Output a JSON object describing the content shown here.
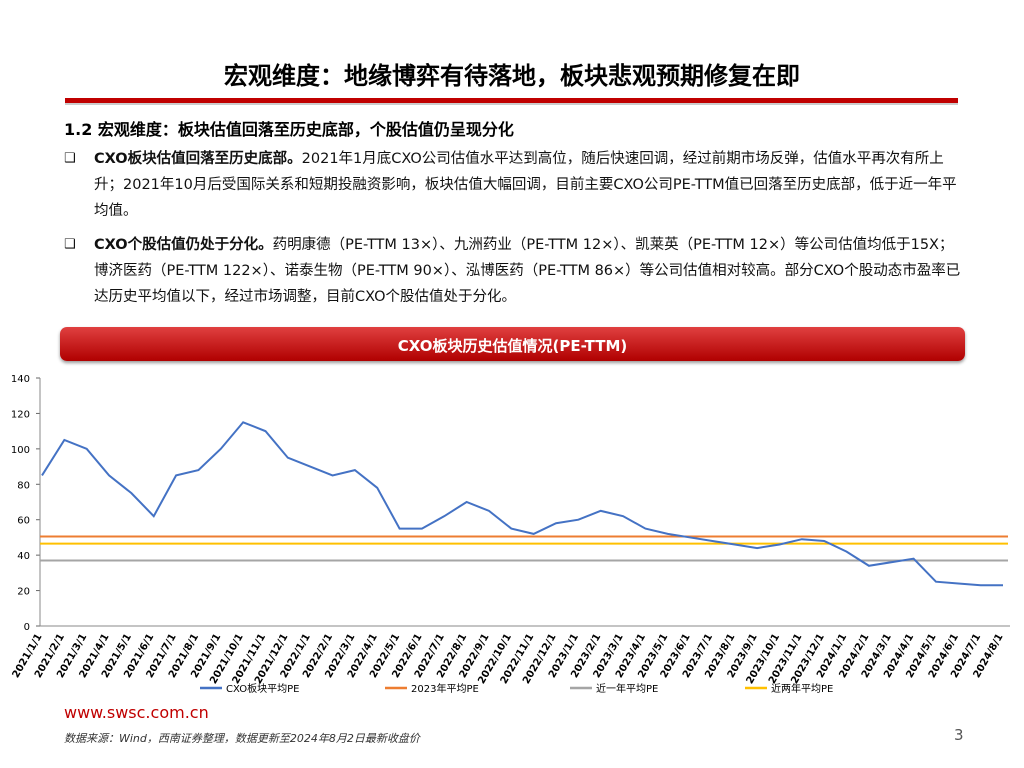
{
  "header": {
    "title": "宏观维度：地缘博弈有待落地，板块悲观预期修复在即",
    "subtitle": "1.2 宏观维度：板块估值回落至历史底部，个股估值仍呈现分化"
  },
  "bullets": [
    {
      "bold": "CXO板块估值回落至历史底部。",
      "text": "2021年1月底CXO公司估值水平达到高位，随后快速回调，经过前期市场反弹，估值水平再次有所上升；2021年10月后受国际关系和短期投融资影响，板块估值大幅回调，目前主要CXO公司PE-TTM值已回落至历史底部，低于近一年平均值。"
    },
    {
      "bold": "CXO个股估值仍处于分化。",
      "text": "药明康德（PE-TTM 13×）、九洲药业（PE-TTM 12×）、凯莱英（PE-TTM 12×）等公司估值均低于15X；博济医药（PE-TTM 122×）、诺泰生物（PE-TTM 90×）、泓博医药（PE-TTM 86×）等公司估值相对较高。部分CXO个股动态市盈率已达历史平均值以下，经过市场调整，目前CXO个股估值处于分化。"
    }
  ],
  "chart_data": {
    "type": "line",
    "title": "CXO板块历史估值情况(PE-TTM)",
    "categories": [
      "2021/1/1",
      "2021/2/1",
      "2021/3/1",
      "2021/4/1",
      "2021/5/1",
      "2021/6/1",
      "2021/7/1",
      "2021/8/1",
      "2021/9/1",
      "2021/10/1",
      "2021/11/1",
      "2021/12/1",
      "2022/1/1",
      "2022/2/1",
      "2022/3/1",
      "2022/4/1",
      "2022/5/1",
      "2022/6/1",
      "2022/7/1",
      "2022/8/1",
      "2022/9/1",
      "2022/10/1",
      "2022/11/1",
      "2022/12/1",
      "2023/1/1",
      "2023/2/1",
      "2023/3/1",
      "2023/4/1",
      "2023/5/1",
      "2023/6/1",
      "2023/7/1",
      "2023/8/1",
      "2023/9/1",
      "2023/10/1",
      "2023/11/1",
      "2023/12/1",
      "2024/1/1",
      "2024/2/1",
      "2024/3/1",
      "2024/4/1",
      "2024/5/1",
      "2024/6/1",
      "2024/7/1",
      "2024/8/1"
    ],
    "series": [
      {
        "name": "CXO板块平均PE",
        "color": "#4472c4",
        "values": [
          85,
          105,
          100,
          85,
          75,
          62,
          85,
          88,
          100,
          115,
          110,
          95,
          90,
          85,
          88,
          78,
          55,
          55,
          62,
          70,
          65,
          55,
          52,
          58,
          60,
          65,
          62,
          55,
          52,
          50,
          48,
          46,
          44,
          46,
          49,
          48,
          42,
          34,
          36,
          38,
          25,
          24,
          23,
          23
        ]
      }
    ],
    "hlines": [
      {
        "name": "2023年平均PE",
        "color": "#ed7d31",
        "value": 50.5
      },
      {
        "name": "近一年平均PE",
        "color": "#a5a5a5",
        "value": 37
      },
      {
        "name": "近两年平均PE",
        "color": "#ffc000",
        "value": 46.5
      }
    ],
    "ylim": [
      0,
      140
    ],
    "yticks": [
      0,
      20,
      40,
      60,
      80,
      100,
      120,
      140
    ]
  },
  "footer": {
    "site": "www.swsc.com.cn",
    "source": "数据来源：Wind，西南证券整理，数据更新至2024年8月2日最新收盘价",
    "page": "3"
  }
}
